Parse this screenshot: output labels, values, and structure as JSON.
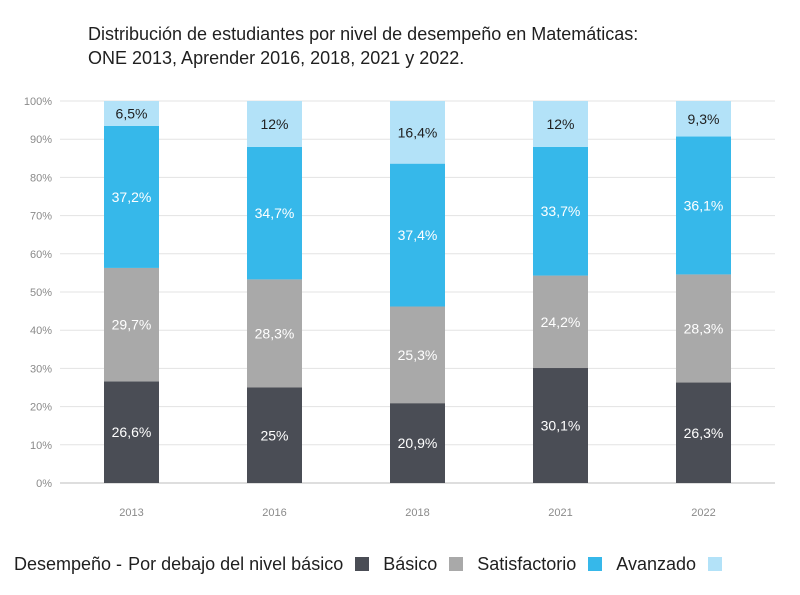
{
  "chart_data": {
    "type": "bar",
    "stacked": true,
    "title": "Distribución de estudiantes por nivel de desempeño en Matemáticas:",
    "subtitle": "ONE 2013, Aprender 2016, 2018, 2021 y 2022.",
    "xlabel": "",
    "ylabel": "",
    "ylim": [
      0,
      100
    ],
    "yticks": [
      {
        "value": 0,
        "label": "0%"
      },
      {
        "value": 10,
        "label": "10%"
      },
      {
        "value": 20,
        "label": "20%"
      },
      {
        "value": 30,
        "label": "30%"
      },
      {
        "value": 40,
        "label": "40%"
      },
      {
        "value": 50,
        "label": "50%"
      },
      {
        "value": 60,
        "label": "60%"
      },
      {
        "value": 70,
        "label": "70%"
      },
      {
        "value": 80,
        "label": "80%"
      },
      {
        "value": 90,
        "label": "90%"
      },
      {
        "value": 100,
        "label": "100%"
      }
    ],
    "grid": true,
    "legend_position": "bottom",
    "categories": [
      "2013",
      "2016",
      "2018",
      "2021",
      "2022"
    ],
    "series": [
      {
        "name": "Por debajo del nivel básico",
        "color": "#4a4d55",
        "values": [
          26.6,
          25,
          20.9,
          30.1,
          26.3
        ],
        "labels": [
          "26,6%",
          "25%",
          "20,9%",
          "30,1%",
          "26,3%"
        ],
        "label_color": "#ffffff"
      },
      {
        "name": "Básico",
        "color": "#a9a9a9",
        "values": [
          29.7,
          28.3,
          25.3,
          24.2,
          28.3
        ],
        "labels": [
          "29,7%",
          "28,3%",
          "25,3%",
          "24,2%",
          "28,3%"
        ],
        "label_color": "#ffffff"
      },
      {
        "name": "Satisfactorio",
        "color": "#36b8ea",
        "values": [
          37.2,
          34.7,
          37.4,
          33.7,
          36.1
        ],
        "labels": [
          "37,2%",
          "34,7%",
          "37,4%",
          "33,7%",
          "36,1%"
        ],
        "label_color": "#ffffff"
      },
      {
        "name": "Avanzado",
        "color": "#b3e2f8",
        "values": [
          6.5,
          12,
          16.4,
          12,
          9.3
        ],
        "labels": [
          "6,5%",
          "12%",
          "16,4%",
          "12%",
          "9,3%"
        ],
        "label_color": "#1f1f1f"
      }
    ]
  },
  "legend": {
    "prefix": "Desempeño -",
    "items": [
      {
        "label": "Por debajo del nivel básico",
        "color": "#4a4d55"
      },
      {
        "label": "Básico",
        "color": "#a9a9a9"
      },
      {
        "label": "Satisfactorio",
        "color": "#36b8ea"
      },
      {
        "label": "Avanzado",
        "color": "#b3e2f8"
      }
    ]
  }
}
